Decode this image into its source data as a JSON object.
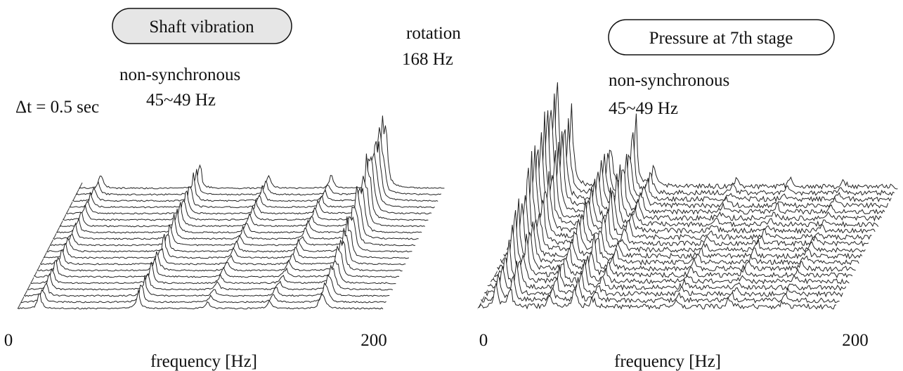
{
  "panels": [
    {
      "title": "Shaft vibration",
      "rotation_label": "rotation",
      "rotation_freq": "168 Hz",
      "nonsync_label": "non-synchronous",
      "nonsync_freq": "45~49 Hz",
      "time_step": "Δt = 0.5 sec",
      "x_ticks": [
        "0",
        "200"
      ],
      "x_label": "frequency [Hz]"
    },
    {
      "title": "Pressure at 7th stage",
      "nonsync_label": "non-synchronous",
      "nonsync_freq": "45~49 Hz",
      "x_ticks": [
        "0",
        "200"
      ],
      "x_label": "frequency [Hz]"
    }
  ]
}
